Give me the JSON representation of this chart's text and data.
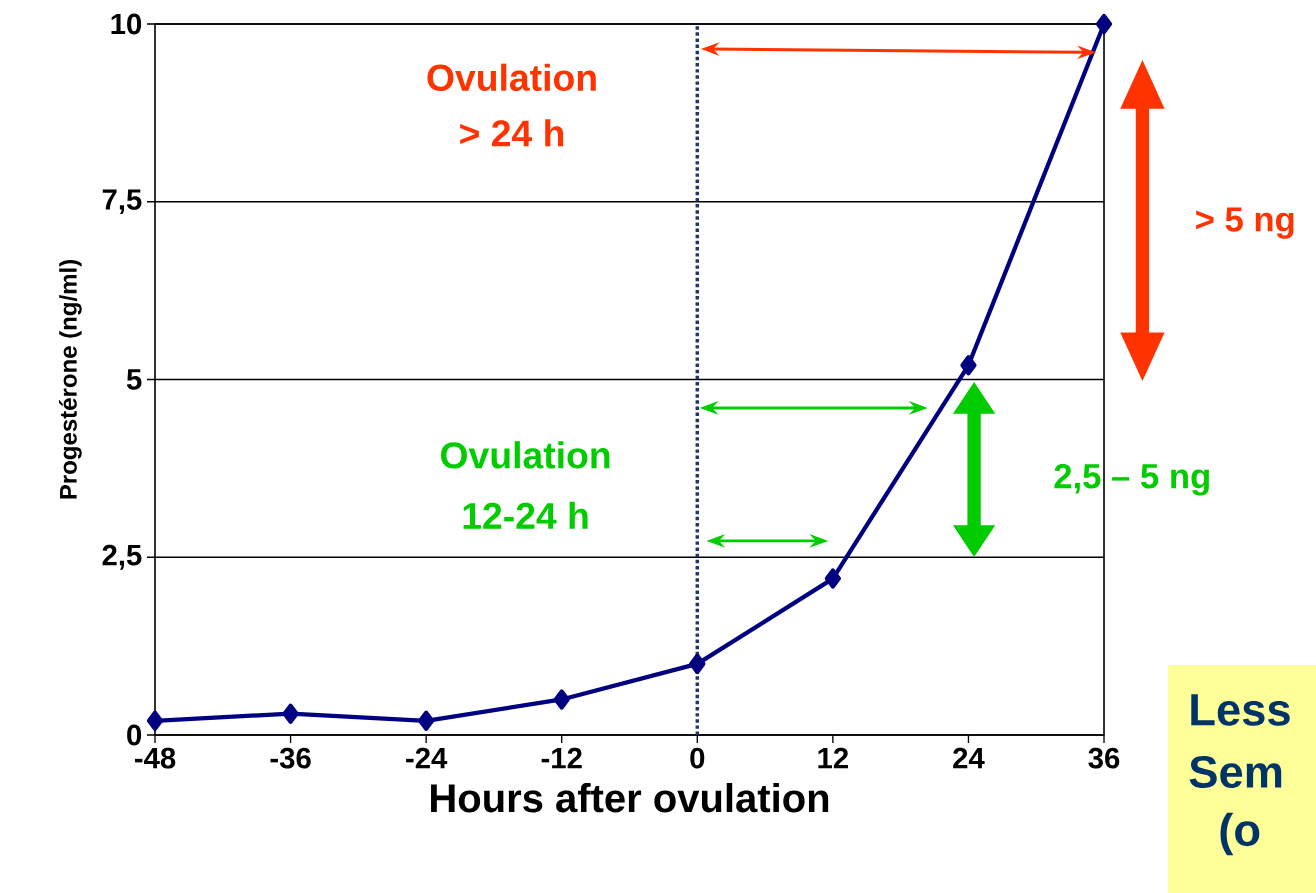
{
  "chart_data": {
    "type": "line",
    "xlabel": "Hours after ovulation",
    "ylabel": "Progestérone (ng/ml)",
    "x": [
      -48,
      -36,
      -24,
      -12,
      0,
      12,
      24,
      36
    ],
    "series": [
      {
        "color": "#000080",
        "values": [
          0.2,
          0.3,
          0.2,
          0.5,
          1.0,
          2.2,
          5.2,
          10
        ]
      }
    ],
    "marker": "diamond",
    "line_style": "solid",
    "grid": "y",
    "xlim": [
      -48,
      36
    ],
    "xticks": [
      -48,
      -36,
      -24,
      -12,
      0,
      12,
      24,
      36
    ],
    "ylim": [
      0,
      10
    ],
    "yticks": [
      0,
      {
        "value": 2.5,
        "label": "2,5"
      },
      5,
      {
        "value": 7.5,
        "label": "7,5"
      },
      10
    ],
    "ref_lines": [
      {
        "axis": "x",
        "value": 0,
        "color": "#1f3864",
        "line_style": "dotted"
      }
    ],
    "annotations": [
      "Ovulation",
      "> 24 h",
      "> 5 ng",
      "Ovulation",
      "12-24 h",
      "2,5 – 5 ng",
      "Less",
      "Sem",
      "(o"
    ]
  }
}
